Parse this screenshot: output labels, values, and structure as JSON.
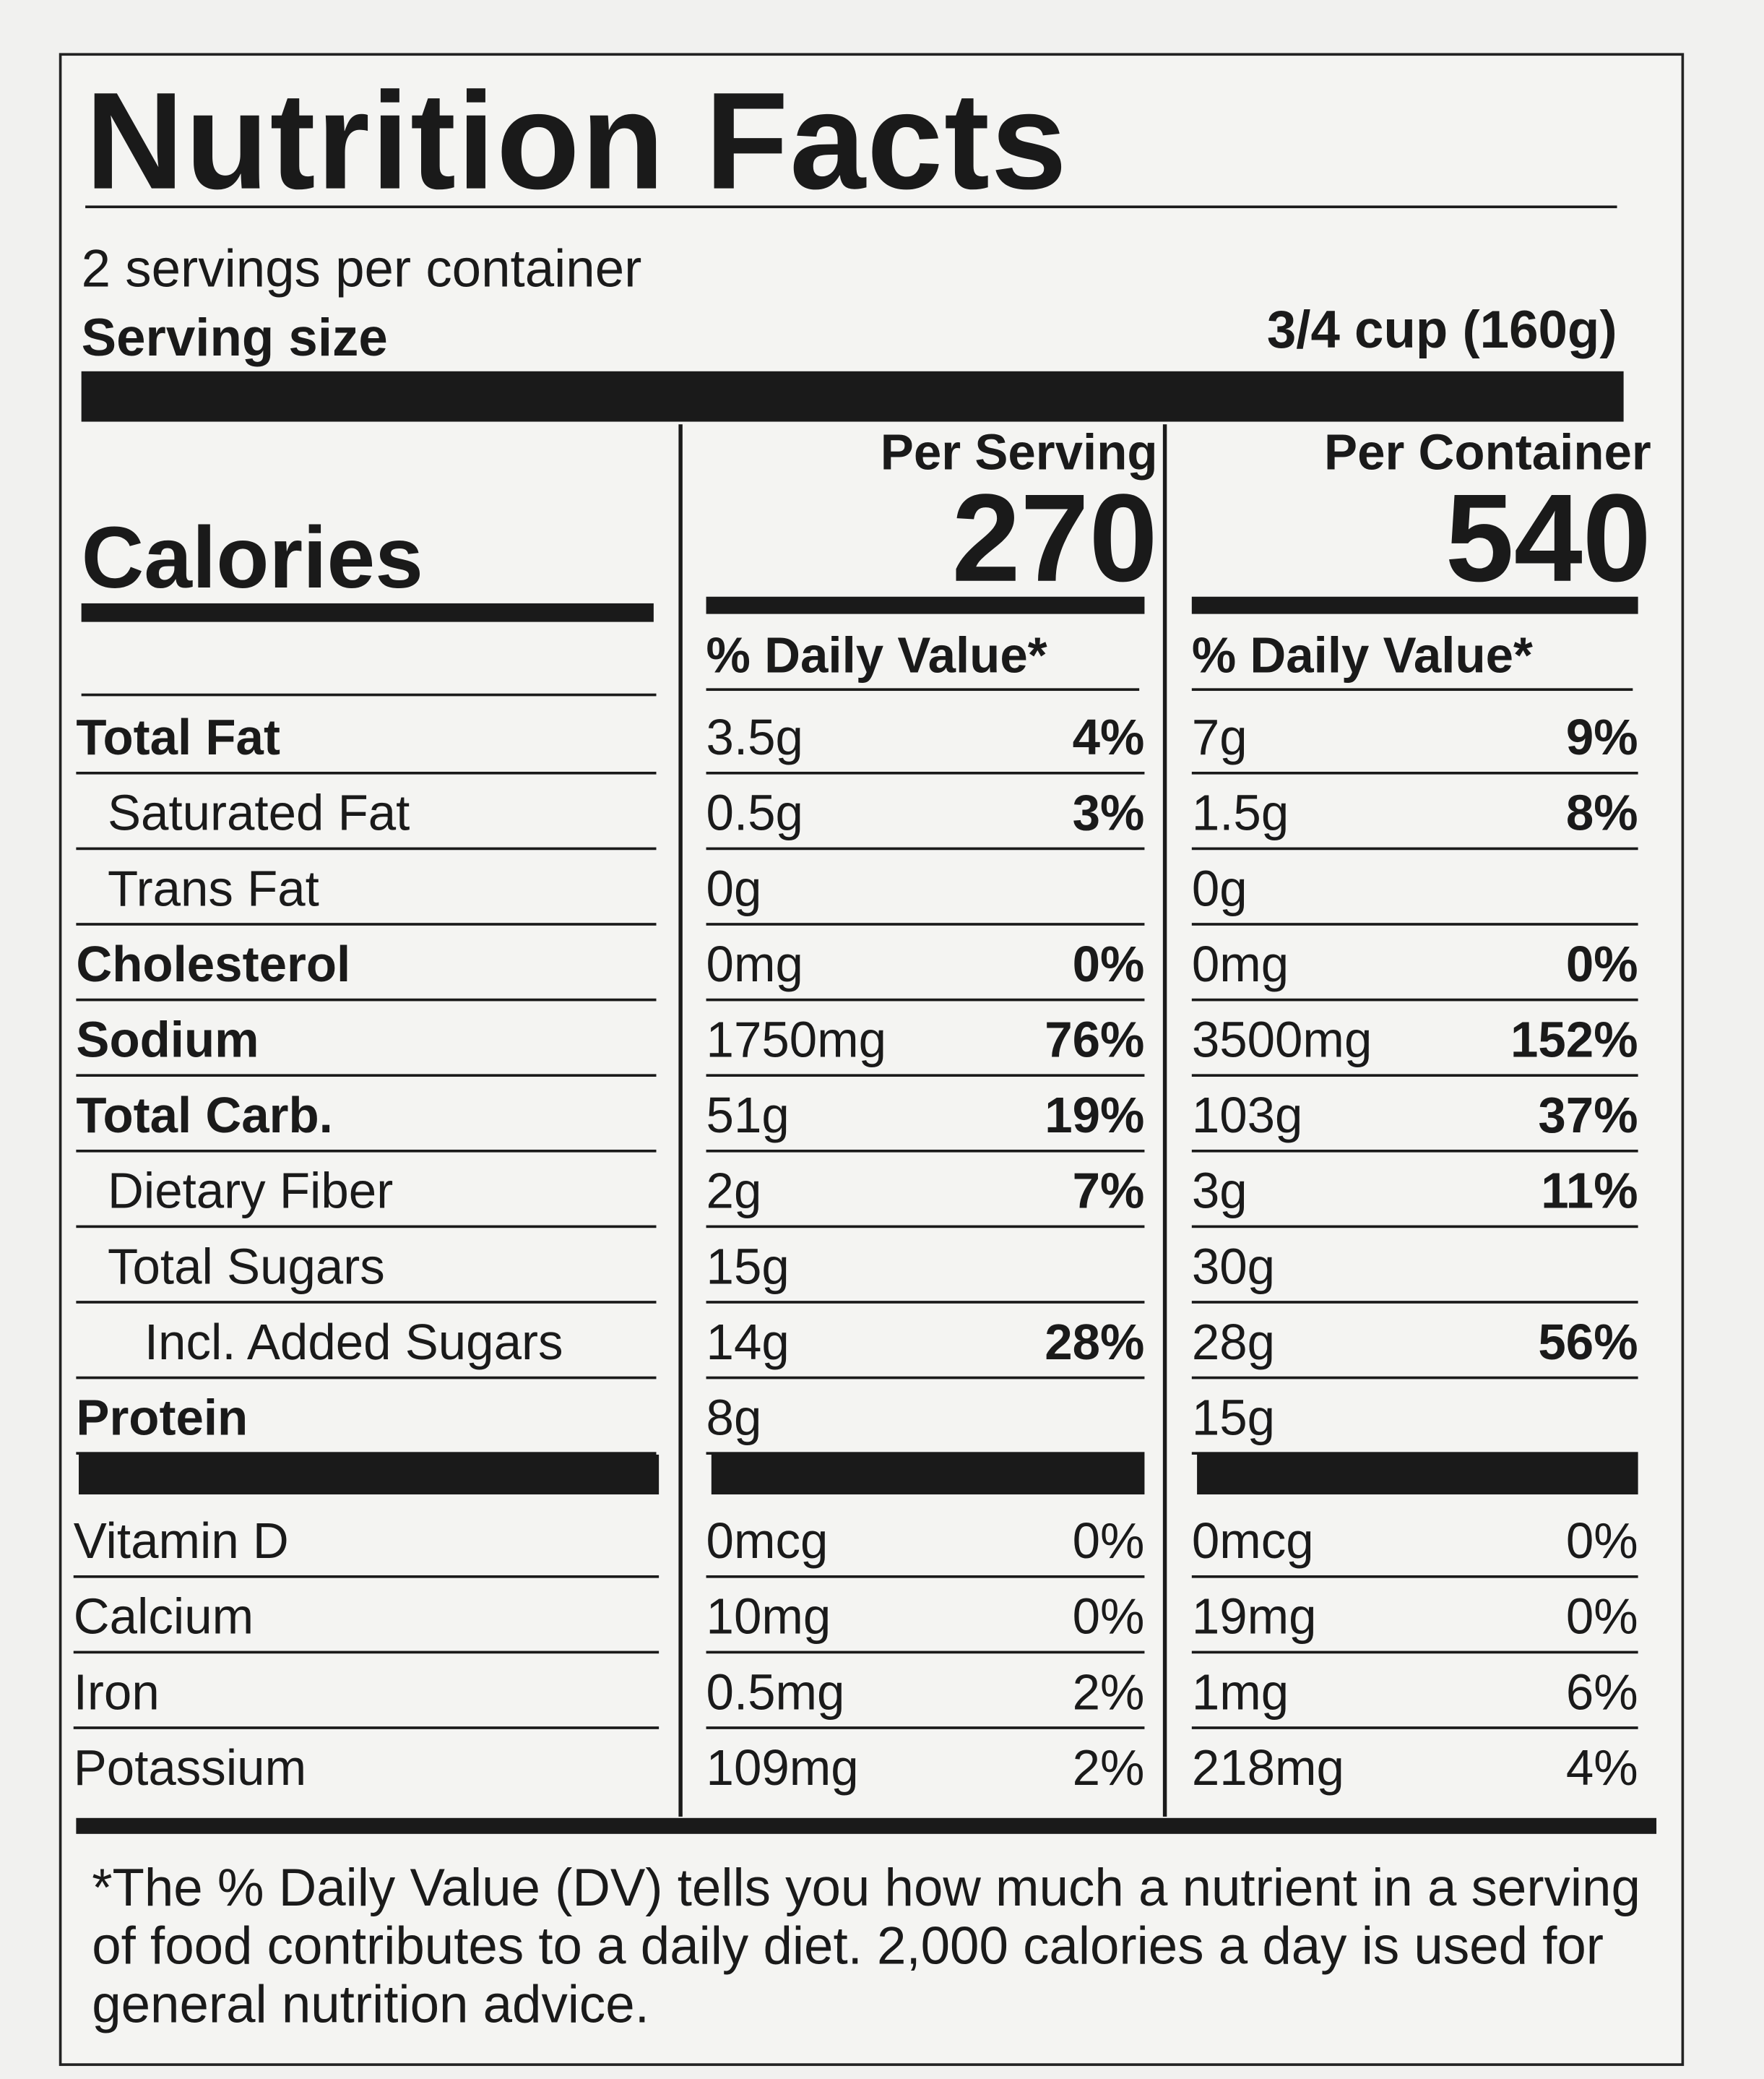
{
  "title": "Nutrition Facts",
  "servings_per_container": "2 servings per container",
  "serving_size": {
    "label": "Serving size",
    "value": "3/4 cup (160g)"
  },
  "calories": {
    "label": "Calories"
  },
  "columns": [
    {
      "header": "Per Serving",
      "calories": "270",
      "dv_header": "% Daily Value*"
    },
    {
      "header": "Per Container",
      "calories": "540",
      "dv_header": "% Daily Value*"
    }
  ],
  "nutrients": [
    {
      "name": "Total Fat",
      "values": [
        {
          "amount": "3.5g",
          "dv": "4%"
        },
        {
          "amount": "7g",
          "dv": "9%"
        }
      ],
      "sub": [
        {
          "name": "Saturated Fat",
          "values": [
            {
              "amount": "0.5g",
              "dv": "3%"
            },
            {
              "amount": "1.5g",
              "dv": "8%"
            }
          ]
        },
        {
          "name": "Trans Fat",
          "values": [
            {
              "amount": "0g"
            },
            {
              "amount": "0g"
            }
          ]
        }
      ]
    },
    {
      "name": "Cholesterol",
      "values": [
        {
          "amount": "0mg",
          "dv": "0%"
        },
        {
          "amount": "0mg",
          "dv": "0%"
        }
      ]
    },
    {
      "name": "Sodium",
      "values": [
        {
          "amount": "1750mg",
          "dv": "76%"
        },
        {
          "amount": "3500mg",
          "dv": "152%"
        }
      ]
    },
    {
      "name": "Total Carb.",
      "values": [
        {
          "amount": "51g",
          "dv": "19%"
        },
        {
          "amount": "103g",
          "dv": "37%"
        }
      ],
      "sub": [
        {
          "name": "Dietary Fiber",
          "values": [
            {
              "amount": "2g",
              "dv": "7%"
            },
            {
              "amount": "3g",
              "dv": "11%"
            }
          ]
        },
        {
          "name": "Total Sugars",
          "values": [
            {
              "amount": "15g"
            },
            {
              "amount": "30g"
            }
          ],
          "sub": [
            {
              "name": "Incl. Added Sugars",
              "values": [
                {
                  "amount": "14g",
                  "dv": "28%"
                },
                {
                  "amount": "28g",
                  "dv": "56%"
                }
              ]
            }
          ]
        }
      ]
    },
    {
      "name": "Protein",
      "values": [
        {
          "amount": "8g"
        },
        {
          "amount": "15g"
        }
      ]
    }
  ],
  "vitamins": [
    {
      "name": "Vitamin D",
      "values": [
        {
          "amount": "0mcg",
          "dv": "0%"
        },
        {
          "amount": "0mcg",
          "dv": "0%"
        }
      ]
    },
    {
      "name": "Calcium",
      "values": [
        {
          "amount": "10mg",
          "dv": "0%"
        },
        {
          "amount": "19mg",
          "dv": "0%"
        }
      ]
    },
    {
      "name": "Iron",
      "values": [
        {
          "amount": "0.5mg",
          "dv": "2%"
        },
        {
          "amount": "1mg",
          "dv": "6%"
        }
      ]
    },
    {
      "name": "Potassium",
      "values": [
        {
          "amount": "109mg",
          "dv": "2%"
        },
        {
          "amount": "218mg",
          "dv": "4%"
        }
      ]
    }
  ],
  "footnote": "*The % Daily Value (DV) tells you how much a nutrient in a serving of food contributes to a daily diet. 2,000 calories a day is used for general nutrition advice."
}
